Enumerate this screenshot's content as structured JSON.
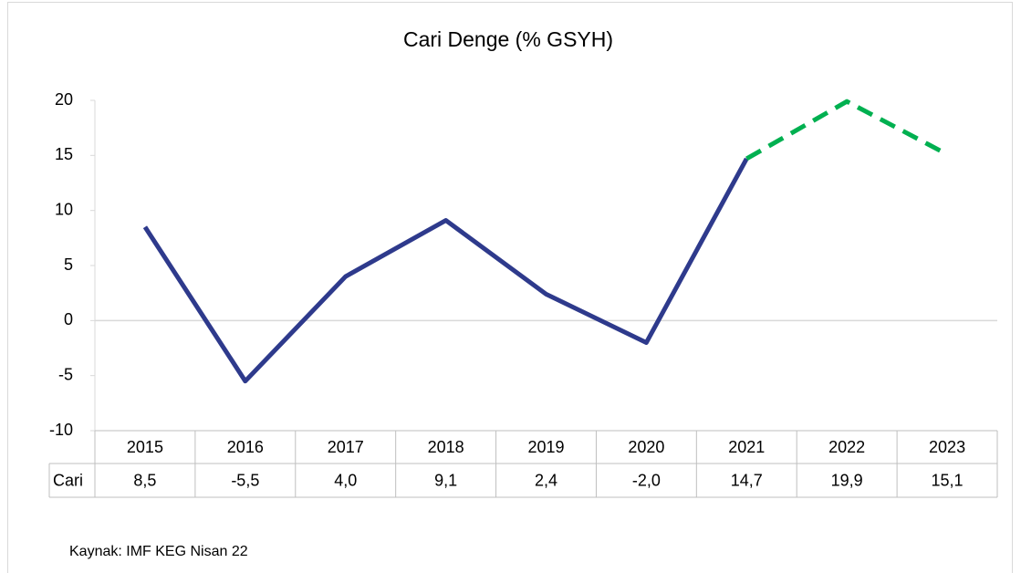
{
  "chart_data": {
    "type": "line",
    "title": "Cari Denge (% GSYH)",
    "categories": [
      "2015",
      "2016",
      "2017",
      "2018",
      "2019",
      "2020",
      "2021",
      "2022",
      "2023"
    ],
    "series": [
      {
        "name": "Cari",
        "color": "#2e3a8c",
        "forecast_color": "#00b050",
        "forecast_from": "2021",
        "values": [
          8.5,
          -5.5,
          4.0,
          9.1,
          2.4,
          -2.0,
          14.7,
          19.9,
          15.1
        ],
        "value_labels": [
          "8,5",
          "-5,5",
          "4,0",
          "9,1",
          "2,4",
          "-2,0",
          "14,7",
          "19,9",
          "15,1"
        ]
      }
    ],
    "ylim": [
      -10,
      20
    ],
    "yticks": [
      -10,
      -5,
      0,
      5,
      10,
      15,
      20
    ],
    "zero_line": true,
    "data_table": true
  },
  "source": "Kaynak: IMF KEG Nisan 22"
}
